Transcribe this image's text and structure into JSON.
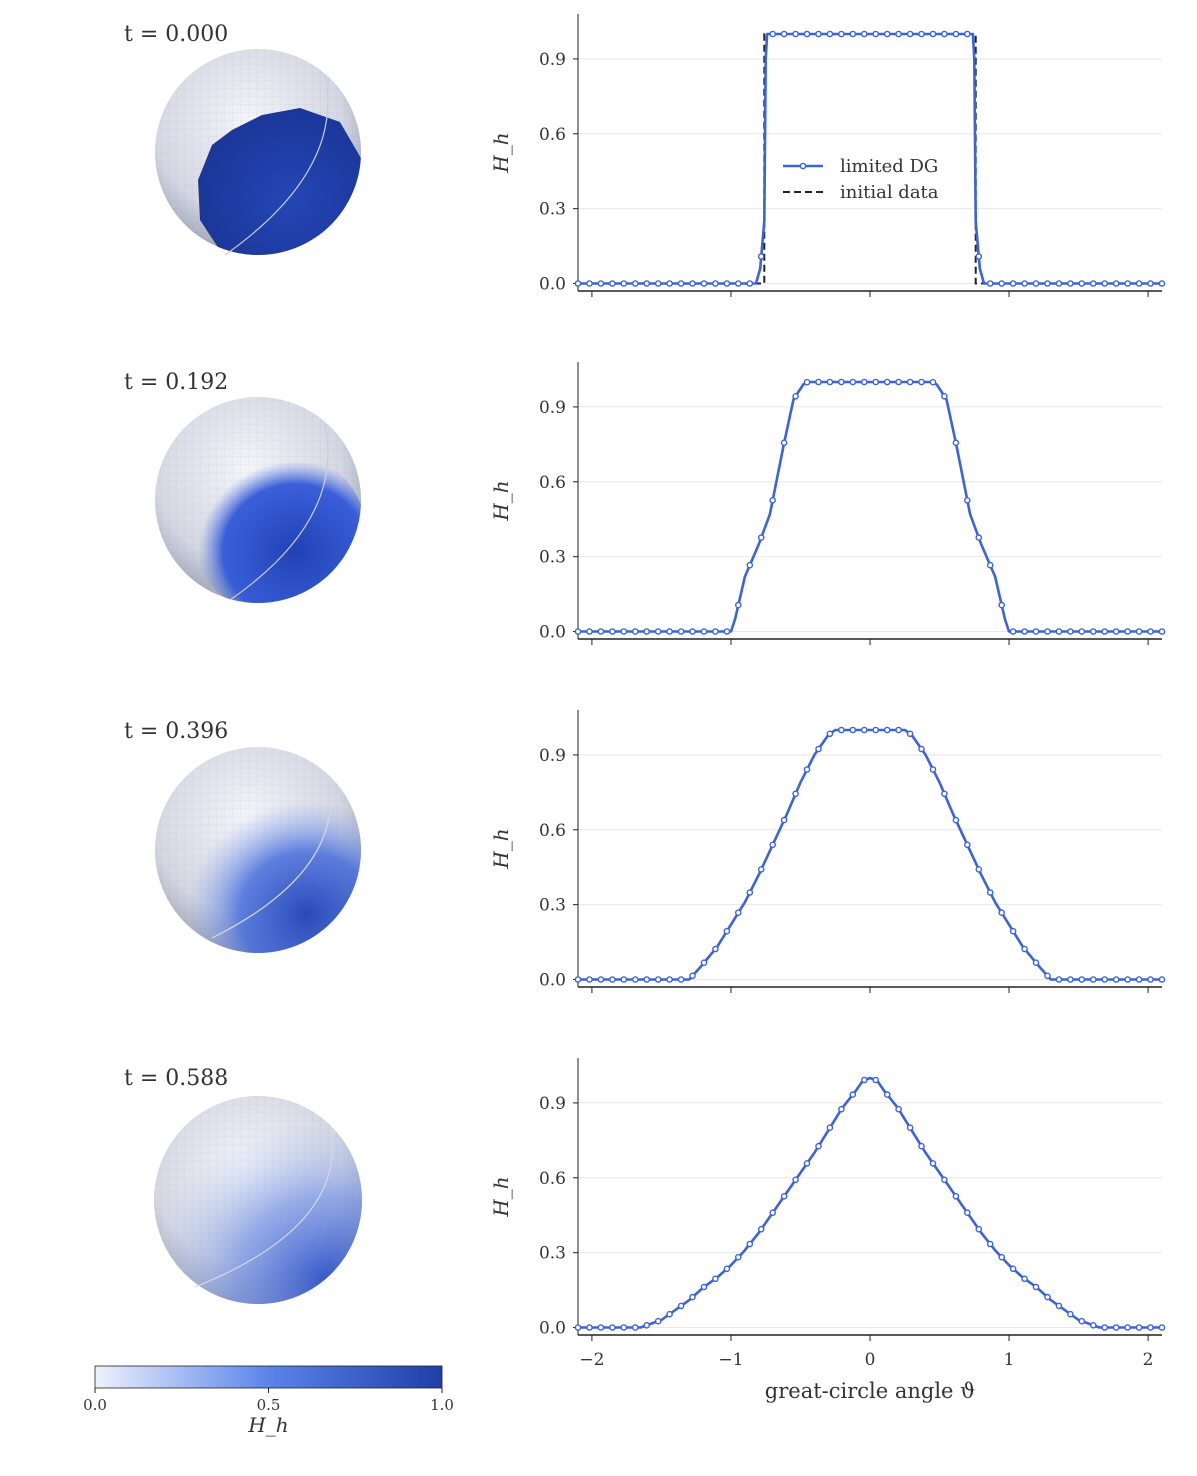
{
  "chart_data": [
    {
      "type": "line",
      "time_label": "t = 0.000",
      "ylabel": "H_h",
      "ylim": [
        -0.03,
        1.08
      ],
      "xlim": [
        -2.1,
        2.1
      ],
      "yticks": [
        "0.0",
        "0.3",
        "0.6",
        "0.9"
      ],
      "xticks": [
        -2,
        -1,
        0,
        1,
        2
      ],
      "show_xtick_labels": false,
      "grid": "horizontal",
      "legend_position": "center",
      "legend": [
        "limited DG",
        "initial data"
      ],
      "series": [
        {
          "name": "limited DG",
          "style": "solid-markers",
          "x": [
            -2.1,
            -0.82,
            -0.79,
            -0.76,
            -0.75,
            -0.74,
            0.74,
            0.75,
            0.76,
            0.79,
            0.82,
            2.1
          ],
          "y": [
            0.0,
            0.0,
            0.06,
            0.25,
            0.9,
            1.0,
            1.0,
            0.9,
            0.25,
            0.06,
            0.0,
            0.0
          ]
        },
        {
          "name": "initial data",
          "style": "dashed",
          "x": [
            -2.1,
            -0.76,
            -0.76,
            0.76,
            0.76,
            2.1
          ],
          "y": [
            0.0,
            0.0,
            1.0,
            1.0,
            0.0,
            0.0
          ]
        }
      ]
    },
    {
      "type": "line",
      "time_label": "t = 0.192",
      "ylabel": "H_h",
      "ylim": [
        -0.03,
        1.08
      ],
      "xlim": [
        -2.1,
        2.1
      ],
      "yticks": [
        "0.0",
        "0.3",
        "0.6",
        "0.9"
      ],
      "xticks": [
        -2,
        -1,
        0,
        1,
        2
      ],
      "show_xtick_labels": false,
      "grid": "horizontal",
      "series": [
        {
          "name": "limited DG",
          "style": "solid-markers",
          "x": [
            -2.1,
            -1.0,
            -0.97,
            -0.9,
            -0.8,
            -0.72,
            -0.62,
            -0.55,
            -0.48,
            -0.45,
            0.0,
            0.45,
            0.48,
            0.55,
            0.62,
            0.72,
            0.8,
            0.9,
            0.97,
            1.0,
            2.1
          ],
          "y": [
            0.0,
            0.0,
            0.05,
            0.22,
            0.35,
            0.47,
            0.75,
            0.93,
            0.99,
            1.0,
            1.0,
            1.0,
            0.99,
            0.93,
            0.75,
            0.47,
            0.35,
            0.22,
            0.05,
            0.0,
            0.0
          ]
        }
      ]
    },
    {
      "type": "line",
      "time_label": "t = 0.396",
      "ylabel": "H_h",
      "ylim": [
        -0.03,
        1.08
      ],
      "xlim": [
        -2.1,
        2.1
      ],
      "yticks": [
        "0.0",
        "0.3",
        "0.6",
        "0.9"
      ],
      "xticks": [
        -2,
        -1,
        0,
        1,
        2
      ],
      "show_xtick_labels": false,
      "grid": "horizontal",
      "series": [
        {
          "name": "limited DG",
          "style": "solid-markers",
          "x": [
            -2.1,
            -1.3,
            -1.22,
            -1.1,
            -1.0,
            -0.9,
            -0.8,
            -0.7,
            -0.6,
            -0.5,
            -0.4,
            -0.3,
            -0.25,
            -0.2,
            0.0,
            0.2,
            0.25,
            0.3,
            0.4,
            0.5,
            0.6,
            0.7,
            0.8,
            0.9,
            1.0,
            1.1,
            1.22,
            1.3,
            2.1
          ],
          "y": [
            0.0,
            0.0,
            0.05,
            0.13,
            0.22,
            0.31,
            0.42,
            0.54,
            0.66,
            0.79,
            0.9,
            0.98,
            1.0,
            1.0,
            1.0,
            1.0,
            1.0,
            0.98,
            0.9,
            0.79,
            0.66,
            0.54,
            0.42,
            0.31,
            0.22,
            0.13,
            0.05,
            0.0,
            0.0
          ]
        }
      ]
    },
    {
      "type": "line",
      "time_label": "t = 0.588",
      "ylabel": "H_h",
      "xlabel": "great-circle angle ϑ",
      "ylim": [
        -0.03,
        1.08
      ],
      "xlim": [
        -2.1,
        2.1
      ],
      "yticks": [
        "0.0",
        "0.3",
        "0.6",
        "0.9"
      ],
      "xticks": [
        -2,
        -1,
        0,
        1,
        2
      ],
      "xtick_labels": [
        "−2",
        "−1",
        "0",
        "1",
        "2"
      ],
      "show_xtick_labels": true,
      "grid": "horizontal",
      "series": [
        {
          "name": "limited DG",
          "style": "solid-markers",
          "x": [
            -2.1,
            -1.65,
            -1.5,
            -1.4,
            -1.3,
            -1.2,
            -1.1,
            -1.0,
            -0.9,
            -0.8,
            -0.7,
            -0.6,
            -0.5,
            -0.4,
            -0.3,
            -0.2,
            -0.1,
            -0.05,
            0.0,
            0.05,
            0.1,
            0.2,
            0.3,
            0.4,
            0.5,
            0.6,
            0.7,
            0.8,
            0.9,
            1.0,
            1.1,
            1.2,
            1.3,
            1.4,
            1.5,
            1.65,
            2.1
          ],
          "y": [
            0.0,
            0.0,
            0.03,
            0.07,
            0.11,
            0.16,
            0.2,
            0.25,
            0.31,
            0.38,
            0.46,
            0.54,
            0.62,
            0.7,
            0.79,
            0.88,
            0.95,
            0.99,
            1.0,
            0.99,
            0.95,
            0.88,
            0.79,
            0.7,
            0.62,
            0.54,
            0.46,
            0.38,
            0.31,
            0.25,
            0.2,
            0.16,
            0.11,
            0.07,
            0.03,
            0.0,
            0.0
          ]
        }
      ]
    }
  ],
  "colorbar": {
    "label": "H_h",
    "ticks": [
      "0.0",
      "0.5",
      "1.0"
    ],
    "range": [
      0.0,
      1.0
    ],
    "colors": [
      "#eef1fb",
      "#5b84ea",
      "#1f3ea8"
    ]
  },
  "colors": {
    "line": "#3a63dc",
    "dashed": "#222222",
    "grid": "#e8e8e8",
    "axis": "#222222"
  }
}
